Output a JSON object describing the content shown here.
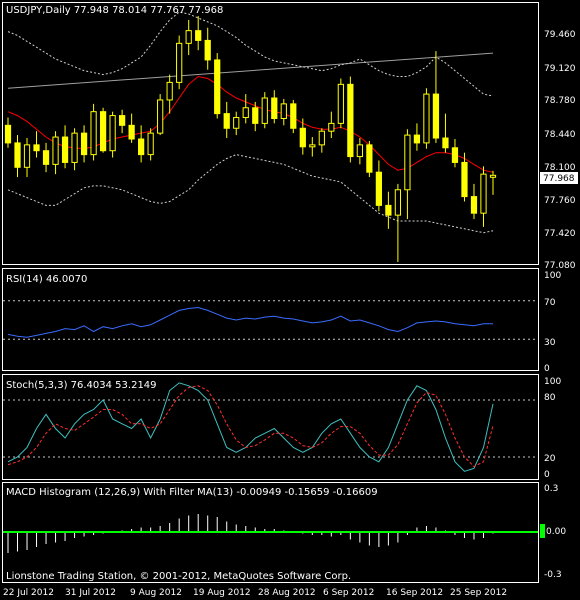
{
  "header": {
    "symbol_line": "USDJPY,Daily  77.948 78.014 77.767 77.968"
  },
  "price_pane": {
    "y_ticks": [
      "79.460",
      "79.120",
      "78.780",
      "78.440",
      "78.100",
      "77.760",
      "77.420",
      "77.080"
    ],
    "current_price_label": "77.968"
  },
  "rsi_pane": {
    "title": "RSI(14) 46.0070",
    "levels": [
      "100",
      "70",
      "30",
      "0"
    ]
  },
  "stoch_pane": {
    "title": "Stoch(5,3,3) 76.4034 53.2149",
    "levels": [
      "100",
      "80",
      "20",
      "0"
    ]
  },
  "macd_pane": {
    "title": "MACD Histogram (12,26,9) With Filter MA(13) -0.00949 -0.15659 -0.16609",
    "levels": [
      "0.3",
      "0.00",
      "-0.3"
    ]
  },
  "footer": {
    "copyright": "Lionstone Trading Station, © 2001-2012, MetaQuotes Software Corp."
  },
  "x_axis": {
    "labels": [
      "22 Jul 2012",
      "31 Jul 2012",
      "9 Aug 2012",
      "19 Aug 2012",
      "28 Aug 2012",
      "6 Sep 2012",
      "16 Sep 2012",
      "25 Sep 2012"
    ]
  },
  "colors": {
    "background": "#000000",
    "frame": "#ffffff",
    "candle": "#ffff00",
    "ma_red": "#ff0000",
    "bollinger_band": "#d0d0d0",
    "trendline": "#a0a0a0",
    "rsi_line": "#3a6cff",
    "stoch_main": "#3fc0c0",
    "stoch_signal": "#ff3030",
    "macd_zero": "#00ff00",
    "level_lines": "#c8c8c8"
  },
  "chart_data": [
    {
      "type": "candlestick",
      "title": "USDJPY,Daily",
      "ylim": [
        77.08,
        79.6
      ],
      "x": [
        "2012-07-19",
        "2012-07-20",
        "2012-07-23",
        "2012-07-24",
        "2012-07-25",
        "2012-07-26",
        "2012-07-27",
        "2012-07-30",
        "2012-07-31",
        "2012-08-01",
        "2012-08-02",
        "2012-08-03",
        "2012-08-06",
        "2012-08-07",
        "2012-08-08",
        "2012-08-09",
        "2012-08-10",
        "2012-08-13",
        "2012-08-14",
        "2012-08-15",
        "2012-08-16",
        "2012-08-17",
        "2012-08-20",
        "2012-08-21",
        "2012-08-22",
        "2012-08-23",
        "2012-08-24",
        "2012-08-27",
        "2012-08-28",
        "2012-08-29",
        "2012-08-30",
        "2012-08-31",
        "2012-09-03",
        "2012-09-04",
        "2012-09-05",
        "2012-09-06",
        "2012-09-07",
        "2012-09-10",
        "2012-09-11",
        "2012-09-12",
        "2012-09-13",
        "2012-09-14",
        "2012-09-17",
        "2012-09-18",
        "2012-09-19",
        "2012-09-20",
        "2012-09-21",
        "2012-09-24",
        "2012-09-25",
        "2012-09-26",
        "2012-09-27",
        "2012-09-28"
      ],
      "ohlc": [
        [
          78.48,
          78.56,
          78.25,
          78.3
        ],
        [
          78.3,
          78.38,
          77.95,
          78.05
        ],
        [
          78.05,
          78.35,
          77.95,
          78.28
        ],
        [
          78.28,
          78.42,
          78.15,
          78.22
        ],
        [
          78.22,
          78.3,
          78.0,
          78.08
        ],
        [
          78.08,
          78.42,
          77.98,
          78.36
        ],
        [
          78.36,
          78.48,
          78.04,
          78.1
        ],
        [
          78.1,
          78.45,
          78.02,
          78.4
        ],
        [
          78.4,
          78.48,
          78.1,
          78.18
        ],
        [
          78.18,
          78.7,
          78.12,
          78.62
        ],
        [
          78.62,
          78.66,
          78.2,
          78.22
        ],
        [
          78.22,
          78.62,
          78.15,
          78.58
        ],
        [
          78.58,
          78.64,
          78.4,
          78.48
        ],
        [
          78.48,
          78.6,
          78.3,
          78.34
        ],
        [
          78.34,
          78.48,
          78.1,
          78.18
        ],
        [
          78.18,
          78.45,
          78.12,
          78.4
        ],
        [
          78.4,
          78.8,
          78.38,
          78.74
        ],
        [
          78.74,
          79.0,
          78.6,
          78.92
        ],
        [
          78.92,
          79.4,
          78.85,
          79.32
        ],
        [
          79.32,
          79.56,
          79.2,
          79.45
        ],
        [
          79.45,
          79.6,
          79.25,
          79.35
        ],
        [
          79.35,
          79.48,
          79.05,
          79.15
        ],
        [
          79.15,
          79.22,
          78.55,
          78.6
        ],
        [
          78.6,
          78.72,
          78.35,
          78.45
        ],
        [
          78.45,
          78.62,
          78.38,
          78.56
        ],
        [
          78.56,
          78.8,
          78.5,
          78.66
        ],
        [
          78.66,
          78.72,
          78.42,
          78.5
        ],
        [
          78.5,
          78.82,
          78.45,
          78.76
        ],
        [
          78.76,
          78.84,
          78.5,
          78.55
        ],
        [
          78.55,
          78.75,
          78.48,
          78.7
        ],
        [
          78.7,
          78.74,
          78.4,
          78.45
        ],
        [
          78.45,
          78.55,
          78.18,
          78.26
        ],
        [
          78.26,
          78.36,
          78.16,
          78.28
        ],
        [
          78.28,
          78.45,
          78.2,
          78.42
        ],
        [
          78.42,
          78.62,
          78.35,
          78.5
        ],
        [
          78.5,
          78.96,
          78.45,
          78.9
        ],
        [
          78.9,
          78.98,
          78.1,
          78.16
        ],
        [
          78.16,
          78.35,
          78.08,
          78.28
        ],
        [
          78.28,
          78.32,
          77.95,
          78.0
        ],
        [
          78.0,
          78.12,
          77.6,
          77.66
        ],
        [
          77.66,
          77.8,
          77.42,
          77.56
        ],
        [
          77.56,
          77.88,
          77.08,
          77.82
        ],
        [
          77.82,
          78.44,
          77.52,
          78.38
        ],
        [
          78.38,
          78.5,
          78.22,
          78.3
        ],
        [
          78.3,
          78.86,
          78.24,
          78.8
        ],
        [
          78.8,
          79.24,
          78.3,
          78.35
        ],
        [
          78.35,
          78.6,
          78.2,
          78.25
        ],
        [
          78.25,
          78.34,
          78.05,
          78.1
        ],
        [
          78.1,
          78.2,
          77.7,
          77.75
        ],
        [
          77.75,
          77.88,
          77.52,
          77.58
        ],
        [
          77.58,
          78.06,
          77.44,
          77.98
        ],
        [
          77.948,
          78.014,
          77.767,
          77.968
        ]
      ],
      "ma_red": [
        78.62,
        78.58,
        78.52,
        78.44,
        78.36,
        78.3,
        78.26,
        78.25,
        78.24,
        78.26,
        78.3,
        78.34,
        78.36,
        78.38,
        78.4,
        78.42,
        78.5,
        78.62,
        78.76,
        78.9,
        78.98,
        78.96,
        78.9,
        78.82,
        78.76,
        78.72,
        78.68,
        78.64,
        78.62,
        78.6,
        78.56,
        78.5,
        78.46,
        78.44,
        78.44,
        78.46,
        78.42,
        78.36,
        78.28,
        78.18,
        78.08,
        78.02,
        78.04,
        78.1,
        78.16,
        78.2,
        78.2,
        78.18,
        78.14,
        78.08,
        78.02,
        78.0
      ],
      "bb_upper": [
        79.44,
        79.4,
        79.34,
        79.28,
        79.22,
        79.16,
        79.12,
        79.08,
        79.04,
        79.02,
        79.0,
        79.02,
        79.06,
        79.12,
        79.18,
        79.3,
        79.44,
        79.56,
        79.64,
        79.62,
        79.58,
        79.54,
        79.5,
        79.44,
        79.38,
        79.3,
        79.24,
        79.18,
        79.14,
        79.12,
        79.1,
        79.08,
        79.06,
        79.04,
        79.06,
        79.1,
        79.12,
        79.16,
        79.1,
        79.04,
        79.0,
        78.98,
        78.98,
        79.02,
        79.08,
        79.18,
        79.12,
        79.04,
        78.96,
        78.88,
        78.8,
        78.78
      ],
      "bb_lower": [
        77.82,
        77.78,
        77.74,
        77.7,
        77.66,
        77.66,
        77.72,
        77.78,
        77.84,
        77.86,
        77.86,
        77.84,
        77.82,
        77.78,
        77.74,
        77.7,
        77.68,
        77.7,
        77.76,
        77.82,
        77.92,
        78.0,
        78.08,
        78.14,
        78.18,
        78.16,
        78.14,
        78.12,
        78.1,
        78.08,
        78.04,
        78.0,
        77.96,
        77.94,
        77.92,
        77.9,
        77.82,
        77.74,
        77.66,
        77.58,
        77.54,
        77.5,
        77.5,
        77.5,
        77.5,
        77.48,
        77.46,
        77.44,
        77.42,
        77.4,
        77.38,
        77.4
      ],
      "trendline": {
        "from": [
          "2012-07-19",
          78.86
        ],
        "to": [
          "2012-09-28",
          79.22
        ]
      }
    },
    {
      "type": "line",
      "title": "RSI(14)",
      "ylim": [
        0,
        100
      ],
      "levels": [
        70,
        30
      ],
      "series": [
        {
          "name": "RSI(14)",
          "values": [
            35,
            33,
            32,
            34,
            36,
            38,
            41,
            40,
            44,
            38,
            43,
            41,
            44,
            46,
            43,
            45,
            50,
            55,
            60,
            62,
            63,
            60,
            56,
            52,
            50,
            52,
            51,
            53,
            54,
            52,
            51,
            49,
            47,
            48,
            50,
            54,
            49,
            50,
            47,
            44,
            40,
            38,
            42,
            47,
            48,
            49,
            48,
            46,
            45,
            44,
            46,
            46
          ]
        }
      ]
    },
    {
      "type": "line",
      "title": "Stoch(5,3,3)",
      "ylim": [
        0,
        100
      ],
      "levels": [
        80,
        20
      ],
      "series": [
        {
          "name": "Stoch main",
          "values": [
            15,
            20,
            30,
            50,
            65,
            50,
            40,
            55,
            65,
            70,
            80,
            60,
            55,
            50,
            60,
            40,
            60,
            90,
            98,
            95,
            90,
            80,
            55,
            30,
            25,
            30,
            40,
            45,
            50,
            40,
            30,
            25,
            30,
            45,
            55,
            60,
            45,
            30,
            20,
            15,
            30,
            55,
            80,
            95,
            90,
            70,
            40,
            15,
            5,
            8,
            30,
            76
          ]
        },
        {
          "name": "Stoch signal",
          "values": [
            12,
            15,
            20,
            30,
            45,
            55,
            50,
            48,
            55,
            62,
            70,
            70,
            65,
            55,
            55,
            50,
            55,
            70,
            85,
            93,
            95,
            90,
            75,
            55,
            38,
            30,
            32,
            38,
            45,
            45,
            40,
            32,
            30,
            35,
            45,
            52,
            52,
            45,
            32,
            22,
            22,
            33,
            55,
            77,
            88,
            85,
            65,
            40,
            20,
            10,
            15,
            53
          ]
        }
      ]
    },
    {
      "type": "bar",
      "title": "MACD Histogram (12,26,9) With Filter MA(13)",
      "ylim": [
        -0.3,
        0.3
      ],
      "series": [
        {
          "name": "MACD Histogram",
          "values": [
            -0.14,
            -0.13,
            -0.12,
            -0.1,
            -0.08,
            -0.07,
            -0.06,
            -0.04,
            -0.03,
            -0.02,
            -0.01,
            0.0,
            0.01,
            0.02,
            0.03,
            0.03,
            0.04,
            0.06,
            0.09,
            0.11,
            0.12,
            0.11,
            0.1,
            0.07,
            0.05,
            0.04,
            0.03,
            0.02,
            0.02,
            0.01,
            0.0,
            -0.01,
            -0.02,
            -0.02,
            -0.03,
            -0.02,
            -0.05,
            -0.07,
            -0.09,
            -0.1,
            -0.09,
            -0.07,
            -0.02,
            0.03,
            0.04,
            0.03,
            0.01,
            -0.02,
            -0.04,
            -0.05,
            -0.04,
            -0.01
          ]
        }
      ]
    }
  ]
}
